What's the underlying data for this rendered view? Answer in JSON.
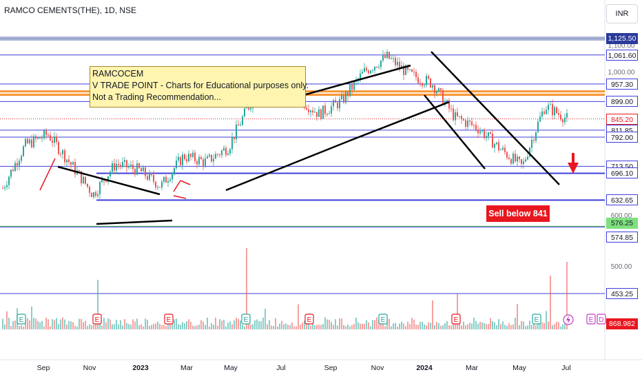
{
  "header": {
    "symbol_line": "RAMCO CEMENTS(THE), 1D, NSE"
  },
  "currency": "INR",
  "note": {
    "lines": [
      "RAMCOCEM",
      "V TRADE POINT - Charts for Educational purposes only.",
      "Not a Trading Recommendation..."
    ]
  },
  "sell_label": "Sell below 841",
  "colors": {
    "up": "#26a69a",
    "down": "#ef5350",
    "level": "#3d3ddb",
    "trend": "#000000",
    "orange": "#f57c00",
    "green_line": "#4caf50",
    "grey": "#9aa5c9",
    "current": "#e8161f"
  },
  "price_labels": [
    {
      "text": "1,125.50",
      "bg": "#2a3a9a",
      "fg": "#ffffff",
      "value": 1125.5
    },
    {
      "text": "1,061.60",
      "bg": "#ffffff",
      "fg": "#131722",
      "border": "#3d3ddb",
      "value": 1061.6
    },
    {
      "text": "957.30",
      "bg": "#ffffff",
      "fg": "#131722",
      "border": "#3d3ddb",
      "value": 957.3
    },
    {
      "text": "899.00",
      "bg": "#ffffff",
      "fg": "#131722",
      "border": "#3d3ddb",
      "value": 899.0
    },
    {
      "text": "845.20",
      "bg": "#ffffff",
      "fg": "#e8161f",
      "border": "#e8161f",
      "value": 845.2
    },
    {
      "text": "811.85",
      "bg": "#ffffff",
      "fg": "#131722",
      "border": "#3d3ddb",
      "value": 811.85
    },
    {
      "text": "792.00",
      "bg": "#ffffff",
      "fg": "#131722",
      "border": "#3d3ddb",
      "value": 792.0
    },
    {
      "text": "713.50",
      "bg": "#ffffff",
      "fg": "#131722",
      "border": "#3d3ddb",
      "value": 713.5
    },
    {
      "text": "696.10",
      "bg": "#ffffff",
      "fg": "#131722",
      "border": "#3d3ddb",
      "value": 696.1
    },
    {
      "text": "632.65",
      "bg": "#ffffff",
      "fg": "#131722",
      "border": "#3d3ddb",
      "value": 632.65
    },
    {
      "text": "576.25",
      "bg": "#7fe07f",
      "fg": "#131722",
      "value": 576.25
    },
    {
      "text": "574.85",
      "bg": "#ffffff",
      "fg": "#131722",
      "border": "#3d3ddb",
      "value": 574.85
    },
    {
      "text": "453.25",
      "bg": "#ffffff",
      "fg": "#131722",
      "border": "#3d3ddb",
      "value": 453.25
    },
    {
      "text": "868.982 K",
      "bg": "#e8161f",
      "fg": "#ffffff",
      "value": 868.982
    }
  ],
  "axis_ticks": [
    "1,100.00",
    "1,000.00",
    "600.00",
    "500.00"
  ],
  "chart_data": {
    "type": "candlestick",
    "interval": "1D",
    "x_labels": [
      "Sep",
      "Nov",
      "2023",
      "Mar",
      "May",
      "Jul",
      "Sep",
      "Nov",
      "2024",
      "Mar",
      "May",
      "Jul"
    ],
    "y_ticks": [
      1100,
      1000,
      600,
      500
    ],
    "log_scale": true,
    "ylim": [
      440,
      1150
    ],
    "price_path": [
      {
        "x": "Aug",
        "y": 660
      },
      {
        "x": "Sep",
        "y": 770
      },
      {
        "x": "Sep",
        "y": 800
      },
      {
        "x": "Oct",
        "y": 720
      },
      {
        "x": "Nov",
        "y": 645
      },
      {
        "x": "Dec",
        "y": 720
      },
      {
        "x": "Jan",
        "y": 705
      },
      {
        "x": "Feb",
        "y": 665
      },
      {
        "x": "Mar",
        "y": 740
      },
      {
        "x": "Apr",
        "y": 725
      },
      {
        "x": "May",
        "y": 765
      },
      {
        "x": "Jun",
        "y": 900
      },
      {
        "x": "Jul",
        "y": 955
      },
      {
        "x": "Aug",
        "y": 915
      },
      {
        "x": "Sep",
        "y": 860
      },
      {
        "x": "Oct",
        "y": 900
      },
      {
        "x": "Nov",
        "y": 1000
      },
      {
        "x": "Dec",
        "y": 1055
      },
      {
        "x": "Jan",
        "y": 990
      },
      {
        "x": "Feb",
        "y": 960
      },
      {
        "x": "Mar",
        "y": 850
      },
      {
        "x": "Apr",
        "y": 820
      },
      {
        "x": "May",
        "y": 760
      },
      {
        "x": "Jun",
        "y": 712
      },
      {
        "x": "Jun",
        "y": 885
      },
      {
        "x": "Jul",
        "y": 845
      }
    ],
    "horizontal_levels": [
      1125.5,
      1061.6,
      957.3,
      899.0,
      811.85,
      792.0,
      713.5,
      696.1,
      632.65,
      574.85,
      453.25
    ],
    "support_zone": [
      925,
      935
    ],
    "green_level": 576.25,
    "current_price": 845.2,
    "volume_last": "868.982 K",
    "events": [
      "E",
      "E",
      "E",
      "E",
      "E",
      "E",
      "E",
      "E",
      "E",
      "D"
    ]
  }
}
